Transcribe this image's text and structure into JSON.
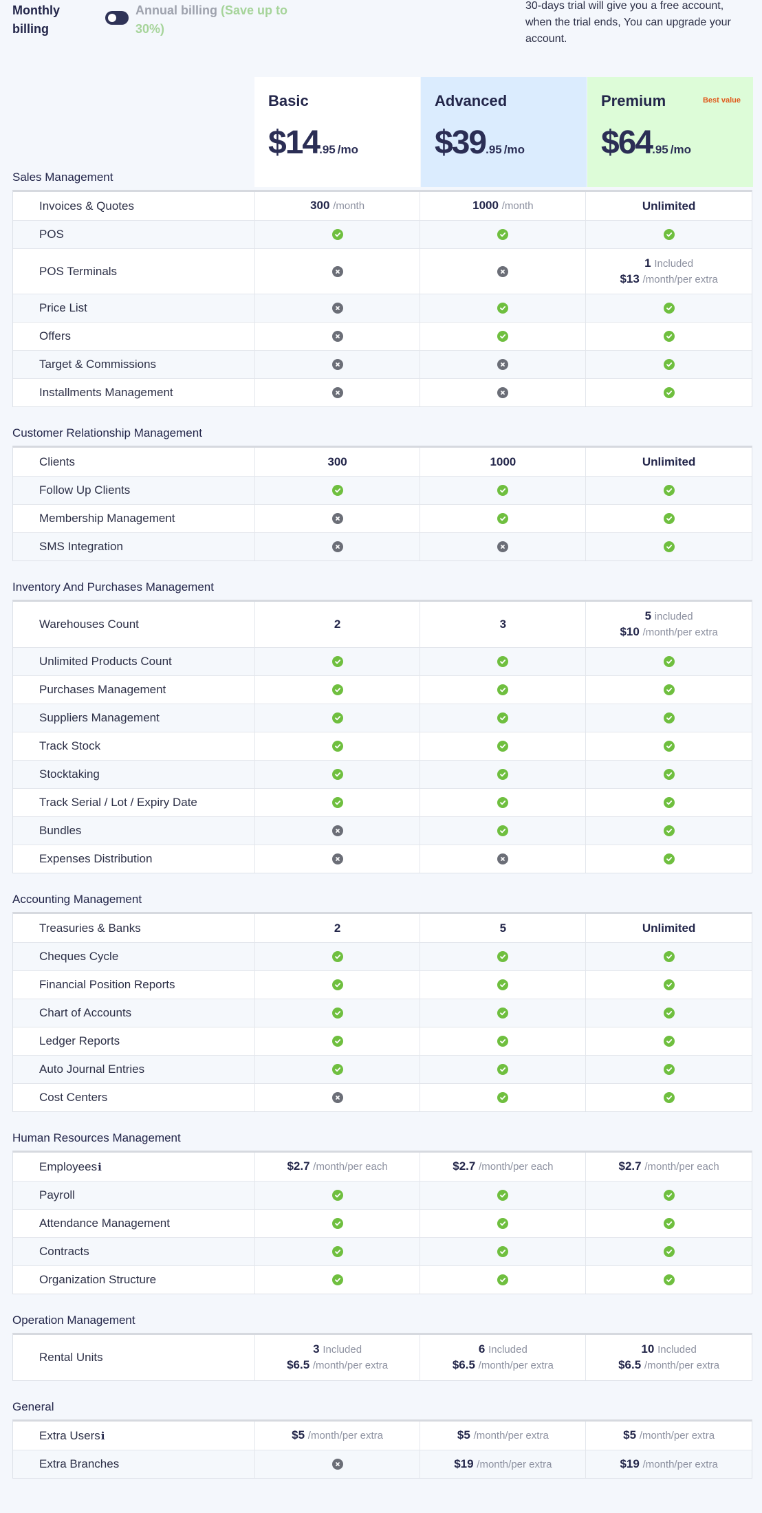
{
  "billing": {
    "monthly_label": "Monthly billing",
    "annual_label": "Annual billing",
    "annual_save": "(Save up to 30%)",
    "trial_note": "30-days trial will give you a free account, when the trial ends, You can upgrade your account."
  },
  "plans": [
    {
      "name": "Basic",
      "price": "$14",
      "cents": ".95",
      "per": "/mo",
      "badge": ""
    },
    {
      "name": "Advanced",
      "price": "$39",
      "cents": ".95",
      "per": "/mo",
      "badge": ""
    },
    {
      "name": "Premium",
      "price": "$64",
      "cents": ".95",
      "per": "/mo",
      "badge": "Best value"
    }
  ],
  "colors": {
    "check": "#6fbf3f",
    "cross": "#6b6e77",
    "advanced_bg": "#dbecfe",
    "premium_bg": "#ddfcd8",
    "best_value": "#e05a1d"
  },
  "sections": [
    {
      "title": "Sales Management",
      "rows": [
        {
          "feature": "Invoices & Quotes",
          "values": [
            {
              "type": "text",
              "strong": "300",
              "unit": "/month"
            },
            {
              "type": "text",
              "strong": "1000",
              "unit": "/month"
            },
            {
              "type": "text",
              "strong": "Unlimited",
              "unit": ""
            }
          ]
        },
        {
          "feature": "POS",
          "values": [
            {
              "type": "yes"
            },
            {
              "type": "yes"
            },
            {
              "type": "yes"
            }
          ]
        },
        {
          "feature": "POS Terminals",
          "tall": true,
          "values": [
            {
              "type": "no"
            },
            {
              "type": "no"
            },
            {
              "type": "two",
              "strong1": "1",
              "unit1": "Included",
              "strong2": "$13",
              "unit2": "/month/per extra"
            }
          ]
        },
        {
          "feature": "Price List",
          "values": [
            {
              "type": "no"
            },
            {
              "type": "yes"
            },
            {
              "type": "yes"
            }
          ]
        },
        {
          "feature": "Offers",
          "values": [
            {
              "type": "no"
            },
            {
              "type": "yes"
            },
            {
              "type": "yes"
            }
          ]
        },
        {
          "feature": "Target & Commissions",
          "values": [
            {
              "type": "no"
            },
            {
              "type": "no"
            },
            {
              "type": "yes"
            }
          ]
        },
        {
          "feature": "Installments Management",
          "values": [
            {
              "type": "no"
            },
            {
              "type": "no"
            },
            {
              "type": "yes"
            }
          ]
        }
      ]
    },
    {
      "title": "Customer Relationship Management",
      "rows": [
        {
          "feature": "Clients",
          "values": [
            {
              "type": "text",
              "strong": "300",
              "unit": ""
            },
            {
              "type": "text",
              "strong": "1000",
              "unit": ""
            },
            {
              "type": "text",
              "strong": "Unlimited",
              "unit": ""
            }
          ]
        },
        {
          "feature": "Follow Up Clients",
          "values": [
            {
              "type": "yes"
            },
            {
              "type": "yes"
            },
            {
              "type": "yes"
            }
          ]
        },
        {
          "feature": "Membership Management",
          "values": [
            {
              "type": "no"
            },
            {
              "type": "yes"
            },
            {
              "type": "yes"
            }
          ]
        },
        {
          "feature": "SMS Integration",
          "values": [
            {
              "type": "no"
            },
            {
              "type": "no"
            },
            {
              "type": "yes"
            }
          ]
        }
      ]
    },
    {
      "title": "Inventory And Purchases Management",
      "rows": [
        {
          "feature": "Warehouses Count",
          "tall": true,
          "values": [
            {
              "type": "text",
              "strong": "2",
              "unit": ""
            },
            {
              "type": "text",
              "strong": "3",
              "unit": ""
            },
            {
              "type": "two",
              "strong1": "5",
              "unit1": "included",
              "strong2": "$10",
              "unit2": "/month/per extra"
            }
          ]
        },
        {
          "feature": "Unlimited Products Count",
          "values": [
            {
              "type": "yes"
            },
            {
              "type": "yes"
            },
            {
              "type": "yes"
            }
          ]
        },
        {
          "feature": "Purchases Management",
          "values": [
            {
              "type": "yes"
            },
            {
              "type": "yes"
            },
            {
              "type": "yes"
            }
          ]
        },
        {
          "feature": "Suppliers Management",
          "values": [
            {
              "type": "yes"
            },
            {
              "type": "yes"
            },
            {
              "type": "yes"
            }
          ]
        },
        {
          "feature": "Track Stock",
          "values": [
            {
              "type": "yes"
            },
            {
              "type": "yes"
            },
            {
              "type": "yes"
            }
          ]
        },
        {
          "feature": "Stocktaking",
          "values": [
            {
              "type": "yes"
            },
            {
              "type": "yes"
            },
            {
              "type": "yes"
            }
          ]
        },
        {
          "feature": "Track Serial / Lot / Expiry Date",
          "values": [
            {
              "type": "yes"
            },
            {
              "type": "yes"
            },
            {
              "type": "yes"
            }
          ]
        },
        {
          "feature": "Bundles",
          "values": [
            {
              "type": "no"
            },
            {
              "type": "yes"
            },
            {
              "type": "yes"
            }
          ]
        },
        {
          "feature": "Expenses Distribution",
          "values": [
            {
              "type": "no"
            },
            {
              "type": "no"
            },
            {
              "type": "yes"
            }
          ]
        }
      ]
    },
    {
      "title": "Accounting Management",
      "rows": [
        {
          "feature": "Treasuries & Banks",
          "values": [
            {
              "type": "text",
              "strong": "2",
              "unit": ""
            },
            {
              "type": "text",
              "strong": "5",
              "unit": ""
            },
            {
              "type": "text",
              "strong": "Unlimited",
              "unit": ""
            }
          ]
        },
        {
          "feature": "Cheques Cycle",
          "values": [
            {
              "type": "yes"
            },
            {
              "type": "yes"
            },
            {
              "type": "yes"
            }
          ]
        },
        {
          "feature": "Financial Position Reports",
          "values": [
            {
              "type": "yes"
            },
            {
              "type": "yes"
            },
            {
              "type": "yes"
            }
          ]
        },
        {
          "feature": "Chart of Accounts",
          "values": [
            {
              "type": "yes"
            },
            {
              "type": "yes"
            },
            {
              "type": "yes"
            }
          ]
        },
        {
          "feature": "Ledger Reports",
          "values": [
            {
              "type": "yes"
            },
            {
              "type": "yes"
            },
            {
              "type": "yes"
            }
          ]
        },
        {
          "feature": "Auto Journal Entries",
          "values": [
            {
              "type": "yes"
            },
            {
              "type": "yes"
            },
            {
              "type": "yes"
            }
          ]
        },
        {
          "feature": "Cost Centers",
          "values": [
            {
              "type": "no"
            },
            {
              "type": "yes"
            },
            {
              "type": "yes"
            }
          ]
        }
      ]
    },
    {
      "title": "Human Resources Management",
      "rows": [
        {
          "feature": "Employees",
          "info": true,
          "values": [
            {
              "type": "text",
              "strong": "$2.7",
              "unit": "/month/per each"
            },
            {
              "type": "text",
              "strong": "$2.7",
              "unit": "/month/per each"
            },
            {
              "type": "text",
              "strong": "$2.7",
              "unit": "/month/per each"
            }
          ]
        },
        {
          "feature": "Payroll",
          "values": [
            {
              "type": "yes"
            },
            {
              "type": "yes"
            },
            {
              "type": "yes"
            }
          ]
        },
        {
          "feature": "Attendance Management",
          "values": [
            {
              "type": "yes"
            },
            {
              "type": "yes"
            },
            {
              "type": "yes"
            }
          ]
        },
        {
          "feature": "Contracts",
          "values": [
            {
              "type": "yes"
            },
            {
              "type": "yes"
            },
            {
              "type": "yes"
            }
          ]
        },
        {
          "feature": "Organization Structure",
          "values": [
            {
              "type": "yes"
            },
            {
              "type": "yes"
            },
            {
              "type": "yes"
            }
          ]
        }
      ]
    },
    {
      "title": "Operation Management",
      "rows": [
        {
          "feature": "Rental Units",
          "tall": true,
          "values": [
            {
              "type": "two",
              "strong1": "3",
              "unit1": "Included",
              "strong2": "$6.5",
              "unit2": "/month/per extra"
            },
            {
              "type": "two",
              "strong1": "6",
              "unit1": "Included",
              "strong2": "$6.5",
              "unit2": "/month/per extra"
            },
            {
              "type": "two",
              "strong1": "10",
              "unit1": "Included",
              "strong2": "$6.5",
              "unit2": "/month/per extra"
            }
          ]
        }
      ]
    },
    {
      "title": "General",
      "rows": [
        {
          "feature": "Extra Users",
          "info": true,
          "values": [
            {
              "type": "text",
              "strong": "$5",
              "unit": "/month/per extra"
            },
            {
              "type": "text",
              "strong": "$5",
              "unit": "/month/per extra"
            },
            {
              "type": "text",
              "strong": "$5",
              "unit": "/month/per extra"
            }
          ]
        },
        {
          "feature": "Extra Branches",
          "values": [
            {
              "type": "no"
            },
            {
              "type": "text",
              "strong": "$19",
              "unit": "/month/per extra"
            },
            {
              "type": "text",
              "strong": "$19",
              "unit": "/month/per extra"
            }
          ]
        }
      ]
    }
  ]
}
